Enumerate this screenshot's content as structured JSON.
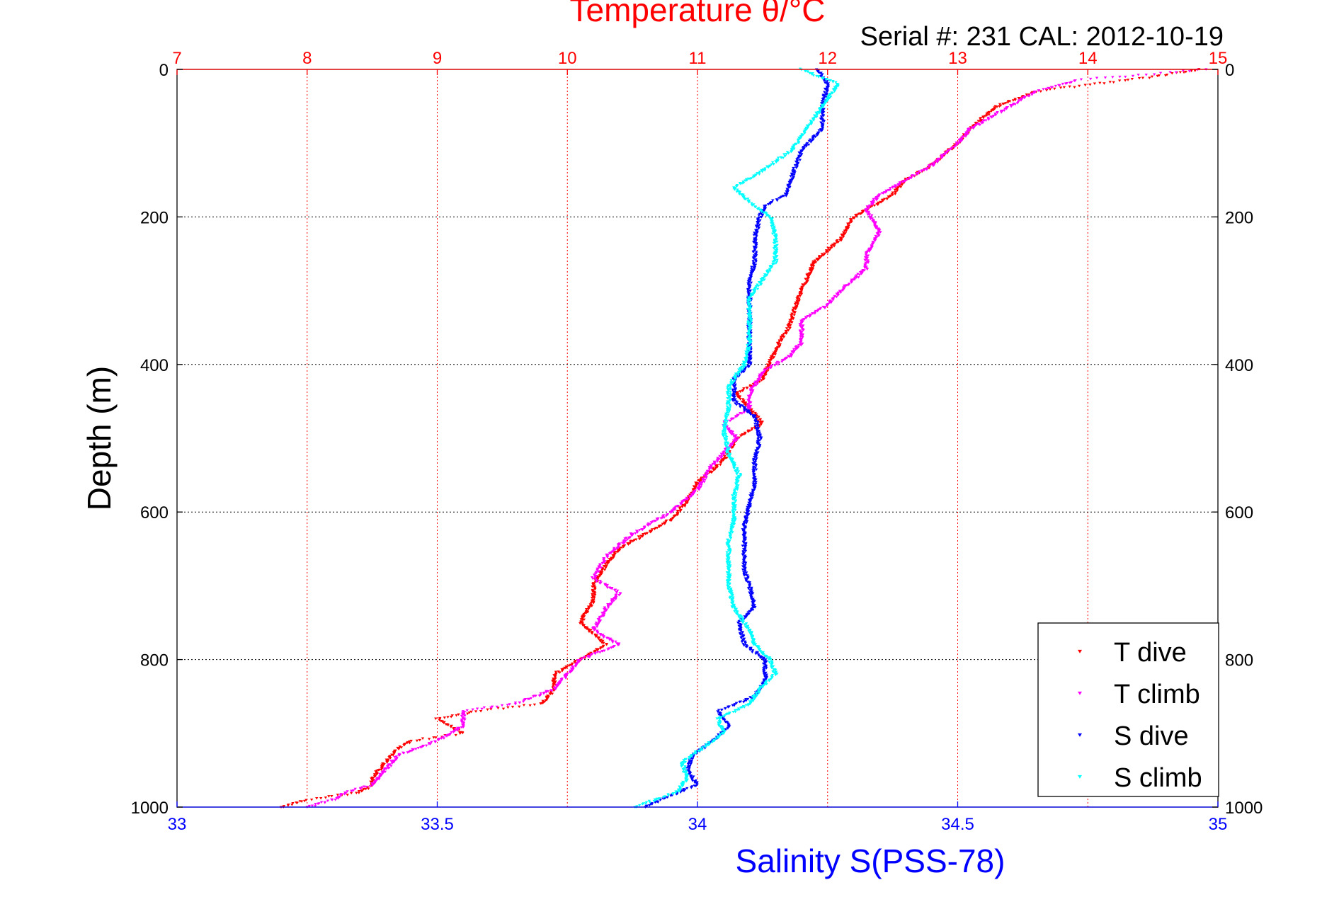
{
  "chart_data": {
    "type": "scatter",
    "title": "Temperature θ/°C",
    "subtitle": "Serial #: 231   CAL: 2012-10-19",
    "ylabel": "Depth (m)",
    "xlabel_bottom": "Salinity S(PSS-78)",
    "xlabel_top": "Temperature θ/°C",
    "ylim": [
      0,
      1000
    ],
    "y_reversed": true,
    "x_bottom_lim": [
      33,
      35
    ],
    "x_top_lim": [
      7,
      15
    ],
    "y_ticks": [
      "0",
      "200",
      "400",
      "600",
      "800",
      "1000"
    ],
    "x_bottom_ticks": [
      "33",
      "33.5",
      "34",
      "34.5",
      "35"
    ],
    "x_top_ticks": [
      "7",
      "8",
      "9",
      "10",
      "11",
      "12",
      "13",
      "14",
      "15"
    ],
    "grid": true,
    "legend_position": "bottom-right",
    "colors": {
      "temperature_axis": "#ff0000",
      "salinity_axis": "#0000ff",
      "t_dive": "#ff0000",
      "t_climb": "#ff00ff",
      "s_dive": "#0000ff",
      "s_climb": "#00ffff"
    },
    "series": [
      {
        "name": "T dive",
        "axis": "top",
        "color": "#ff0000",
        "points": [
          [
            14.85,
            0
          ],
          [
            14.5,
            10
          ],
          [
            13.6,
            30
          ],
          [
            13.3,
            50
          ],
          [
            13.1,
            80
          ],
          [
            13.0,
            100
          ],
          [
            12.8,
            130
          ],
          [
            12.6,
            150
          ],
          [
            12.5,
            170
          ],
          [
            12.2,
            200
          ],
          [
            12.1,
            230
          ],
          [
            11.9,
            260
          ],
          [
            11.8,
            300
          ],
          [
            11.7,
            350
          ],
          [
            11.6,
            380
          ],
          [
            11.5,
            420
          ],
          [
            11.3,
            440
          ],
          [
            11.4,
            460
          ],
          [
            11.5,
            480
          ],
          [
            11.3,
            500
          ],
          [
            11.2,
            530
          ],
          [
            11.0,
            560
          ],
          [
            10.9,
            590
          ],
          [
            10.8,
            610
          ],
          [
            10.6,
            630
          ],
          [
            10.4,
            650
          ],
          [
            10.3,
            670
          ],
          [
            10.2,
            700
          ],
          [
            10.2,
            720
          ],
          [
            10.1,
            750
          ],
          [
            10.3,
            780
          ],
          [
            10.1,
            800
          ],
          [
            9.9,
            820
          ],
          [
            9.9,
            840
          ],
          [
            9.8,
            860
          ],
          [
            9.3,
            870
          ],
          [
            9.0,
            880
          ],
          [
            9.2,
            900
          ],
          [
            8.8,
            910
          ],
          [
            8.7,
            920
          ],
          [
            8.6,
            940
          ],
          [
            8.5,
            960
          ],
          [
            8.5,
            970
          ],
          [
            8.4,
            980
          ],
          [
            8.0,
            990
          ],
          [
            7.8,
            1000
          ]
        ]
      },
      {
        "name": "T climb",
        "axis": "top",
        "color": "#ff00ff",
        "points": [
          [
            14.9,
            0
          ],
          [
            13.9,
            15
          ],
          [
            13.6,
            30
          ],
          [
            13.4,
            50
          ],
          [
            13.1,
            80
          ],
          [
            13.0,
            100
          ],
          [
            12.8,
            130
          ],
          [
            12.6,
            150
          ],
          [
            12.4,
            170
          ],
          [
            12.3,
            190
          ],
          [
            12.4,
            220
          ],
          [
            12.3,
            250
          ],
          [
            12.3,
            270
          ],
          [
            12.1,
            300
          ],
          [
            12.0,
            320
          ],
          [
            11.8,
            340
          ],
          [
            11.8,
            370
          ],
          [
            11.7,
            390
          ],
          [
            11.5,
            410
          ],
          [
            11.4,
            440
          ],
          [
            11.4,
            460
          ],
          [
            11.2,
            480
          ],
          [
            11.3,
            500
          ],
          [
            11.1,
            540
          ],
          [
            11.0,
            570
          ],
          [
            10.8,
            600
          ],
          [
            10.5,
            630
          ],
          [
            10.3,
            660
          ],
          [
            10.2,
            690
          ],
          [
            10.4,
            710
          ],
          [
            10.3,
            730
          ],
          [
            10.2,
            760
          ],
          [
            10.4,
            780
          ],
          [
            10.1,
            800
          ],
          [
            10.0,
            820
          ],
          [
            9.9,
            840
          ],
          [
            9.6,
            860
          ],
          [
            9.2,
            870
          ],
          [
            9.2,
            890
          ],
          [
            9.0,
            910
          ],
          [
            8.7,
            930
          ],
          [
            8.6,
            950
          ],
          [
            8.5,
            970
          ],
          [
            8.3,
            980
          ],
          [
            8.2,
            990
          ],
          [
            8.0,
            1000
          ]
        ]
      },
      {
        "name": "S dive",
        "axis": "bottom",
        "color": "#0000ff",
        "points": [
          [
            34.23,
            0
          ],
          [
            34.25,
            20
          ],
          [
            34.24,
            50
          ],
          [
            34.24,
            80
          ],
          [
            34.2,
            110
          ],
          [
            34.18,
            150
          ],
          [
            34.17,
            170
          ],
          [
            34.13,
            185
          ],
          [
            34.12,
            200
          ],
          [
            34.11,
            230
          ],
          [
            34.11,
            260
          ],
          [
            34.1,
            290
          ],
          [
            34.1,
            320
          ],
          [
            34.1,
            350
          ],
          [
            34.1,
            380
          ],
          [
            34.1,
            400
          ],
          [
            34.07,
            420
          ],
          [
            34.07,
            450
          ],
          [
            34.11,
            470
          ],
          [
            34.12,
            500
          ],
          [
            34.11,
            530
          ],
          [
            34.11,
            560
          ],
          [
            34.1,
            590
          ],
          [
            34.09,
            620
          ],
          [
            34.09,
            650
          ],
          [
            34.09,
            680
          ],
          [
            34.1,
            700
          ],
          [
            34.11,
            730
          ],
          [
            34.08,
            750
          ],
          [
            34.09,
            780
          ],
          [
            34.13,
            800
          ],
          [
            34.13,
            830
          ],
          [
            34.11,
            850
          ],
          [
            34.04,
            870
          ],
          [
            34.06,
            890
          ],
          [
            34.03,
            910
          ],
          [
            33.99,
            930
          ],
          [
            33.98,
            950
          ],
          [
            34.0,
            970
          ],
          [
            33.93,
            990
          ],
          [
            33.9,
            1000
          ]
        ]
      },
      {
        "name": "S climb",
        "axis": "bottom",
        "color": "#00ffff",
        "points": [
          [
            34.2,
            0
          ],
          [
            34.27,
            20
          ],
          [
            34.24,
            50
          ],
          [
            34.21,
            80
          ],
          [
            34.18,
            110
          ],
          [
            34.12,
            140
          ],
          [
            34.07,
            160
          ],
          [
            34.1,
            180
          ],
          [
            34.14,
            200
          ],
          [
            34.15,
            230
          ],
          [
            34.15,
            260
          ],
          [
            34.13,
            280
          ],
          [
            34.1,
            310
          ],
          [
            34.1,
            340
          ],
          [
            34.1,
            370
          ],
          [
            34.09,
            400
          ],
          [
            34.06,
            430
          ],
          [
            34.06,
            460
          ],
          [
            34.05,
            490
          ],
          [
            34.06,
            520
          ],
          [
            34.08,
            550
          ],
          [
            34.07,
            580
          ],
          [
            34.07,
            610
          ],
          [
            34.06,
            640
          ],
          [
            34.06,
            670
          ],
          [
            34.06,
            700
          ],
          [
            34.07,
            730
          ],
          [
            34.1,
            760
          ],
          [
            34.11,
            780
          ],
          [
            34.14,
            800
          ],
          [
            34.15,
            820
          ],
          [
            34.12,
            840
          ],
          [
            34.1,
            860
          ],
          [
            34.04,
            880
          ],
          [
            34.05,
            900
          ],
          [
            34.01,
            920
          ],
          [
            33.97,
            940
          ],
          [
            33.98,
            960
          ],
          [
            33.96,
            980
          ],
          [
            33.92,
            990
          ],
          [
            33.88,
            1000
          ]
        ]
      }
    ]
  }
}
